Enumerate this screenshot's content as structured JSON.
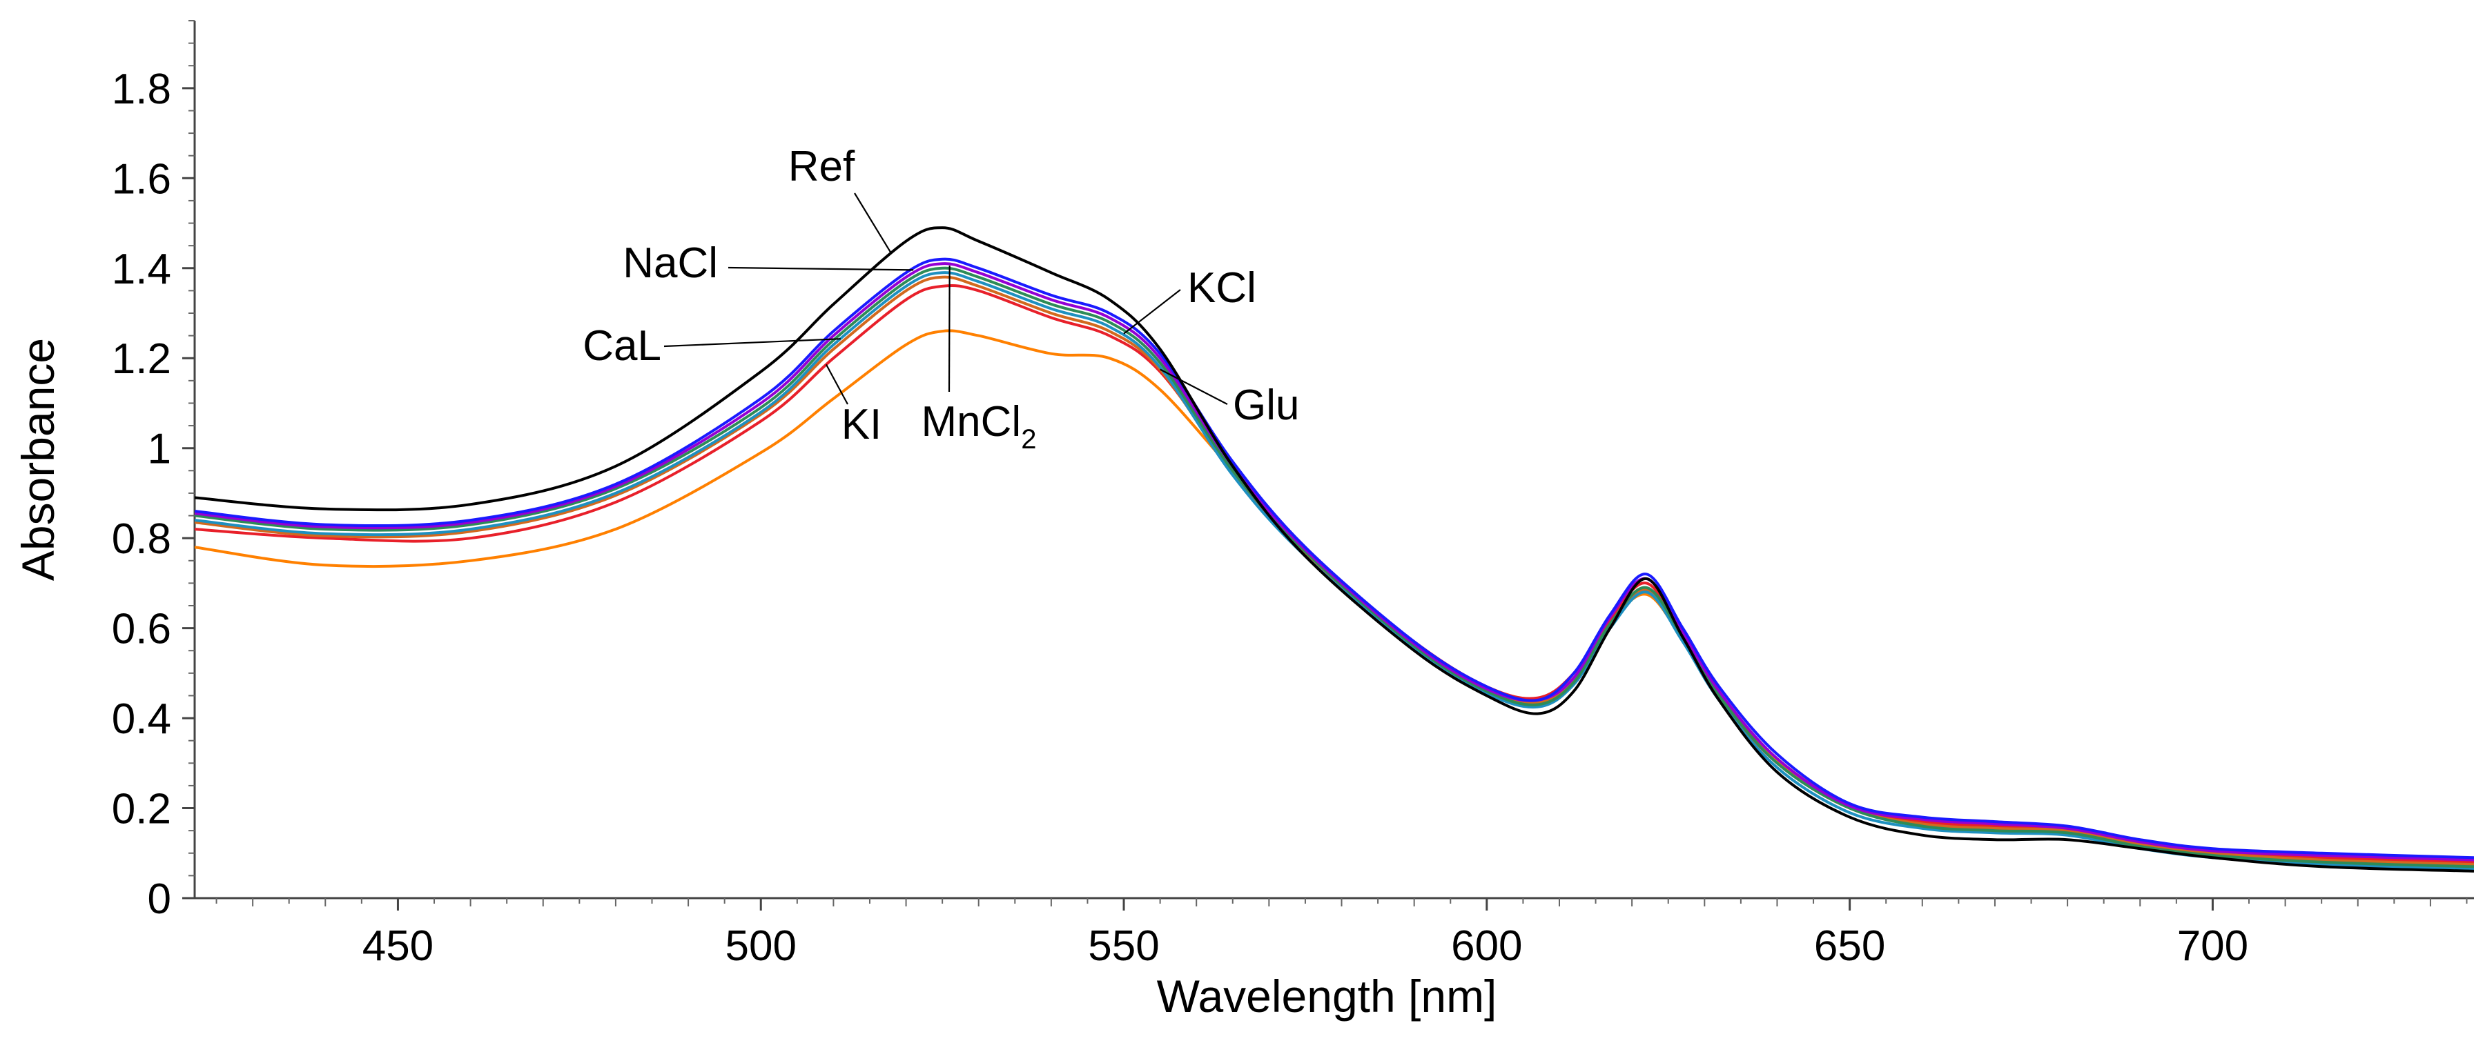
{
  "chart_data": {
    "type": "line",
    "title": "",
    "xlabel": "Wavelength [nm]",
    "ylabel": "Absorbance",
    "xlim": [
      422,
      736
    ],
    "ylim": [
      0,
      1.95
    ],
    "x_ticks": [
      450,
      500,
      550,
      600,
      650,
      700
    ],
    "x_tick_labels": [
      "450",
      "500",
      "550",
      "600",
      "650",
      "700"
    ],
    "y_ticks": [
      0,
      0.2,
      0.4,
      0.6,
      0.8,
      1.0,
      1.2,
      1.4,
      1.6,
      1.8
    ],
    "y_tick_labels": [
      "0",
      "0.2",
      "0.4",
      "0.6",
      "0.8",
      "1",
      "1.2",
      "1.4",
      "1.6",
      "1.8"
    ],
    "x": [
      422,
      440,
      460,
      480,
      500,
      510,
      520,
      525,
      530,
      540,
      548,
      555,
      565,
      575,
      590,
      600,
      607,
      612,
      617,
      622,
      627,
      632,
      640,
      650,
      660,
      670,
      680,
      690,
      700,
      715,
      736
    ],
    "series": [
      {
        "name": "Ref",
        "label": "Ref",
        "color": "#000000",
        "values": [
          0.89,
          0.865,
          0.875,
          0.96,
          1.17,
          1.32,
          1.46,
          1.49,
          1.46,
          1.39,
          1.33,
          1.22,
          0.96,
          0.76,
          0.55,
          0.45,
          0.41,
          0.46,
          0.6,
          0.71,
          0.58,
          0.44,
          0.28,
          0.18,
          0.14,
          0.13,
          0.13,
          0.11,
          0.09,
          0.07,
          0.06
        ]
      },
      {
        "name": "NaCl",
        "label": "NaCl",
        "color": "#1a1aff",
        "values": [
          0.86,
          0.83,
          0.84,
          0.92,
          1.11,
          1.26,
          1.39,
          1.42,
          1.4,
          1.34,
          1.3,
          1.21,
          0.97,
          0.78,
          0.57,
          0.47,
          0.44,
          0.5,
          0.63,
          0.72,
          0.6,
          0.47,
          0.32,
          0.21,
          0.18,
          0.17,
          0.16,
          0.13,
          0.11,
          0.1,
          0.09
        ]
      },
      {
        "name": "MnCl2",
        "label": "MnCl",
        "label_sub": "2",
        "color": "#9400d3",
        "values": [
          0.855,
          0.825,
          0.835,
          0.915,
          1.1,
          1.25,
          1.38,
          1.41,
          1.39,
          1.33,
          1.29,
          1.2,
          0.96,
          0.775,
          0.565,
          0.465,
          0.44,
          0.49,
          0.625,
          0.71,
          0.59,
          0.46,
          0.31,
          0.205,
          0.175,
          0.165,
          0.155,
          0.125,
          0.105,
          0.095,
          0.085
        ]
      },
      {
        "name": "KCl",
        "label": "KCl",
        "color": "#2e8b57",
        "values": [
          0.85,
          0.82,
          0.83,
          0.91,
          1.09,
          1.24,
          1.37,
          1.4,
          1.38,
          1.32,
          1.28,
          1.19,
          0.95,
          0.77,
          0.56,
          0.46,
          0.43,
          0.48,
          0.61,
          0.69,
          0.58,
          0.45,
          0.3,
          0.2,
          0.16,
          0.15,
          0.145,
          0.115,
          0.095,
          0.08,
          0.07
        ]
      },
      {
        "name": "CaL",
        "label": "CaL",
        "color": "#1e90c0",
        "values": [
          0.84,
          0.81,
          0.82,
          0.9,
          1.08,
          1.23,
          1.36,
          1.39,
          1.37,
          1.31,
          1.27,
          1.18,
          0.94,
          0.76,
          0.555,
          0.455,
          0.425,
          0.475,
          0.6,
          0.68,
          0.57,
          0.44,
          0.29,
          0.19,
          0.155,
          0.145,
          0.14,
          0.11,
          0.09,
          0.075,
          0.065
        ]
      },
      {
        "name": "Glu",
        "label": "Glu",
        "color": "#d2691e",
        "values": [
          0.835,
          0.805,
          0.815,
          0.895,
          1.075,
          1.22,
          1.35,
          1.38,
          1.36,
          1.3,
          1.26,
          1.175,
          0.945,
          0.765,
          0.56,
          0.46,
          0.435,
          0.485,
          0.61,
          0.685,
          0.575,
          0.445,
          0.3,
          0.2,
          0.165,
          0.155,
          0.15,
          0.12,
          0.1,
          0.085,
          0.075
        ]
      },
      {
        "name": "KI",
        "label": "KI",
        "color": "#e8202a",
        "values": [
          0.82,
          0.8,
          0.8,
          0.88,
          1.06,
          1.2,
          1.33,
          1.36,
          1.35,
          1.29,
          1.25,
          1.17,
          0.955,
          0.77,
          0.57,
          0.47,
          0.445,
          0.5,
          0.62,
          0.7,
          0.585,
          0.455,
          0.31,
          0.205,
          0.17,
          0.16,
          0.155,
          0.125,
          0.105,
          0.09,
          0.08
        ]
      },
      {
        "name": "Orange",
        "label": "",
        "color": "#ff8000",
        "values": [
          0.78,
          0.74,
          0.75,
          0.82,
          0.99,
          1.11,
          1.23,
          1.26,
          1.25,
          1.21,
          1.2,
          1.13,
          0.95,
          0.77,
          0.565,
          0.465,
          0.44,
          0.49,
          0.61,
          0.675,
          0.575,
          0.45,
          0.305,
          0.2,
          0.165,
          0.155,
          0.15,
          0.12,
          0.1,
          0.085,
          0.075
        ]
      }
    ],
    "annotations": [
      {
        "label": "Ref",
        "series": "Ref"
      },
      {
        "label": "NaCl",
        "series": "NaCl"
      },
      {
        "label": "CaL",
        "series": "CaL"
      },
      {
        "label": "KI",
        "series": "KI"
      },
      {
        "label": "MnCl",
        "label_sub": "2",
        "series": "MnCl2"
      },
      {
        "label": "KCl",
        "series": "KCl"
      },
      {
        "label": "Glu",
        "series": "Glu"
      }
    ],
    "grid": false,
    "legend": "none"
  }
}
